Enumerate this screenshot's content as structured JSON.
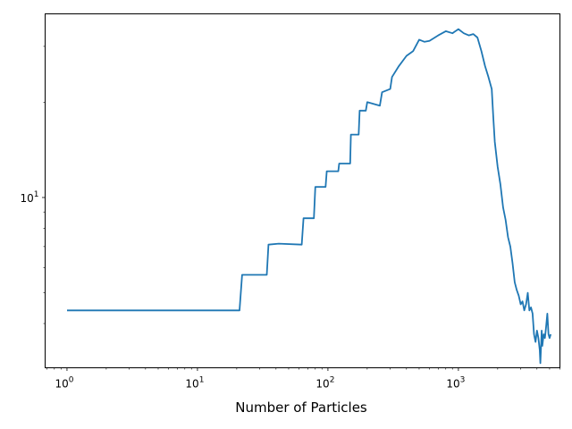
{
  "chart_data": {
    "type": "line",
    "title": "",
    "xlabel": "Number of Particles",
    "ylabel": "",
    "xscale": "log",
    "yscale": "log",
    "xlim": [
      0.68,
      6000
    ],
    "ylim": [
      2.9,
      38
    ],
    "grid": false,
    "legend": "none",
    "colors": {
      "line": "#1f77b4",
      "frame": "#000000",
      "background": "#ffffff"
    },
    "x_ticks": [
      {
        "value": 1,
        "label_base": "10",
        "label_exp": "0"
      },
      {
        "value": 10,
        "label_base": "10",
        "label_exp": "1"
      },
      {
        "value": 100,
        "label_base": "10",
        "label_exp": "2"
      },
      {
        "value": 1000,
        "label_base": "10",
        "label_exp": "3"
      }
    ],
    "y_ticks": [
      {
        "value": 10,
        "label_base": "10",
        "label_exp": "1"
      }
    ],
    "y_minor_ticks": [
      4,
      5,
      6,
      7,
      8,
      9,
      20,
      30
    ],
    "series": [
      {
        "x": [
          1,
          21,
          22,
          34,
          35,
          42,
          63,
          65,
          78,
          80,
          96,
          98,
          120,
          122,
          148,
          150,
          172,
          175,
          195,
          200,
          250,
          260,
          300,
          310,
          350,
          400,
          450,
          500,
          550,
          600,
          700,
          800,
          900,
          1000,
          1100,
          1200,
          1300,
          1400,
          1500,
          1600,
          1700,
          1800,
          1850,
          1900,
          2000,
          2100,
          2200,
          2300,
          2400,
          2500,
          2600,
          2700,
          2800,
          2900,
          3000,
          3100,
          3200,
          3300,
          3400,
          3500,
          3600,
          3700,
          3800,
          3900,
          4000,
          4100,
          4200,
          4250,
          4300,
          4350,
          4400,
          4500,
          4600,
          4700,
          4800,
          4900,
          5000,
          5100
        ],
        "y": [
          4.4,
          4.4,
          5.7,
          5.7,
          7.1,
          7.15,
          7.1,
          8.6,
          8.6,
          10.8,
          10.8,
          12.1,
          12.1,
          12.8,
          12.8,
          15.8,
          15.8,
          18.8,
          18.8,
          20,
          19.5,
          21.5,
          22,
          24,
          26,
          28,
          29,
          31.5,
          31,
          31.2,
          32.5,
          33.5,
          33,
          34,
          33,
          32.5,
          32.8,
          32,
          29,
          26,
          24,
          22,
          18,
          15,
          12.5,
          11,
          9.3,
          8.5,
          7.5,
          7,
          6.2,
          5.4,
          5.1,
          4.9,
          4.6,
          4.7,
          4.4,
          4.6,
          5.0,
          4.4,
          4.5,
          4.3,
          3.7,
          3.5,
          3.8,
          3.6,
          3.3,
          3.0,
          3.4,
          3.8,
          3.4,
          3.7,
          3.6,
          3.9,
          4.3,
          3.7,
          3.6,
          3.7
        ]
      }
    ]
  }
}
